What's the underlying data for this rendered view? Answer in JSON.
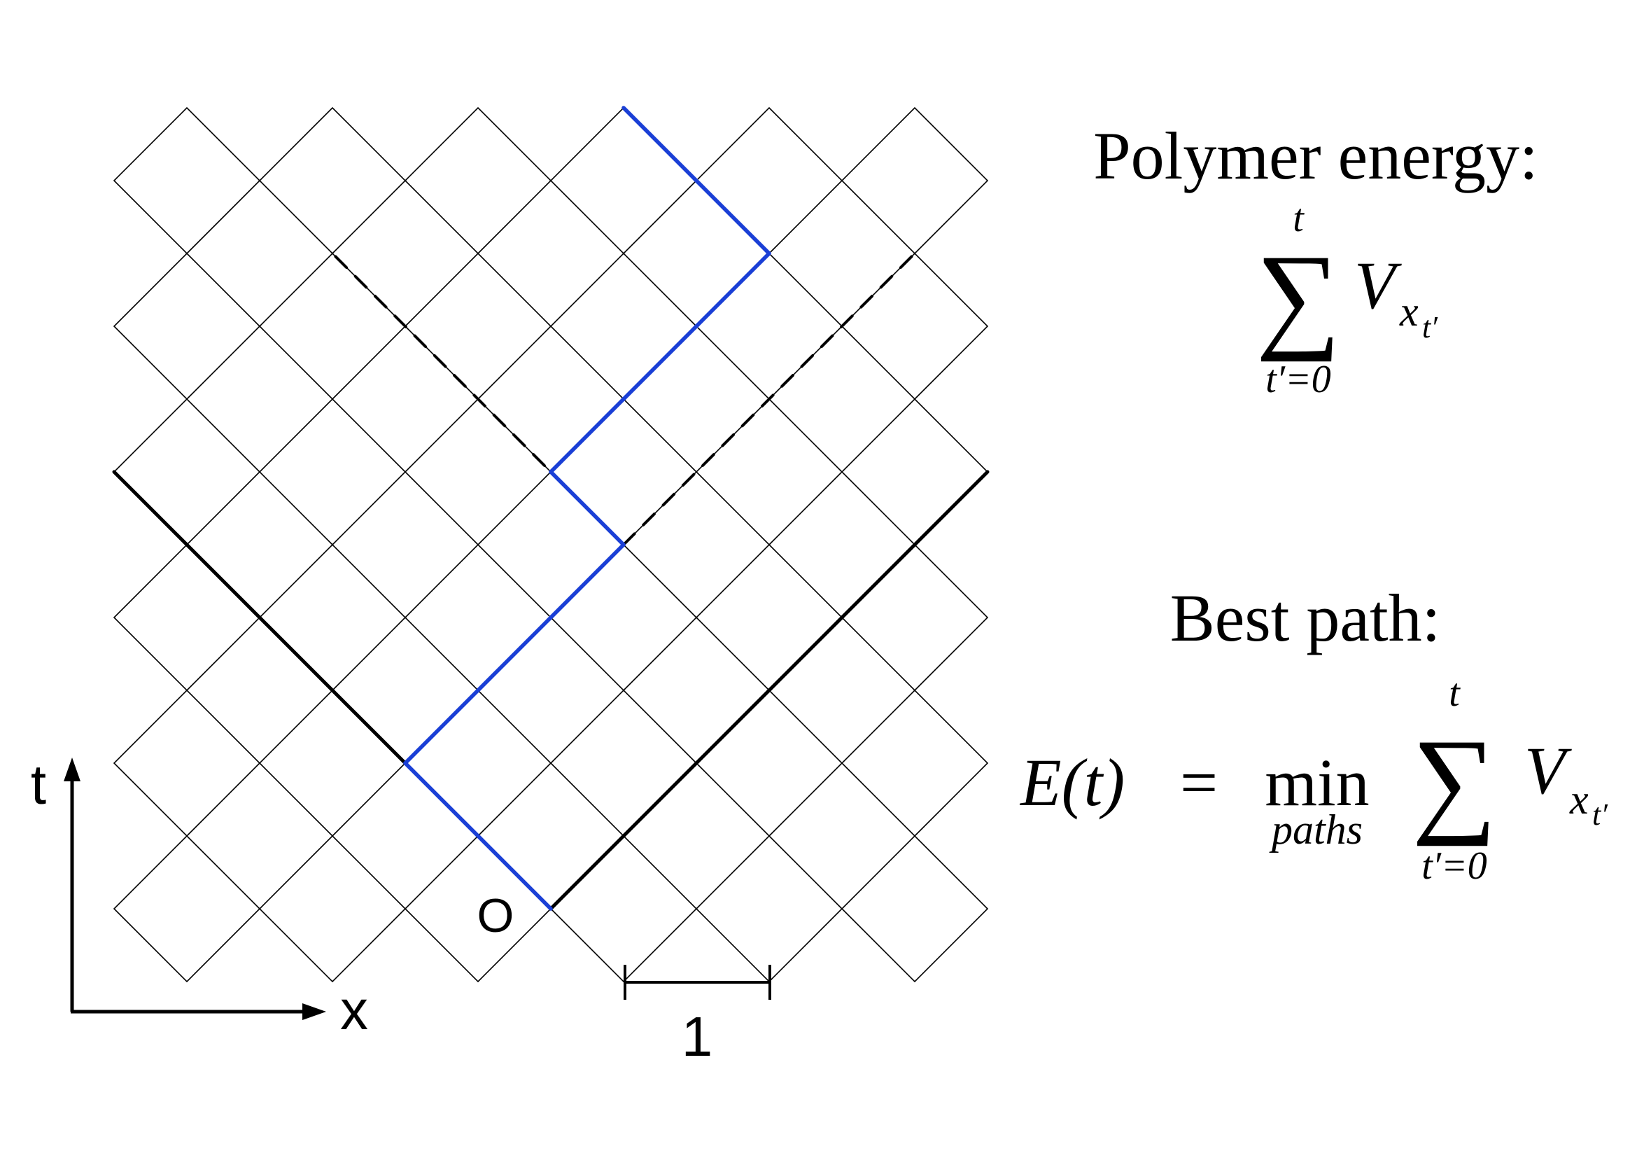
{
  "axes": {
    "time_label": "t",
    "space_label": "x",
    "origin_label": "O",
    "scale_label": "1"
  },
  "formula_energy": {
    "heading": "Polymer energy:",
    "sum_symbol": "∑",
    "sum_upper": "t",
    "sum_lower": "t′=0",
    "term": "V",
    "term_sub": "x",
    "term_subsub": "t′"
  },
  "formula_best": {
    "heading": "Best path:",
    "lhs": "E(t)",
    "equals": "=",
    "min_op": "min",
    "min_sub": "paths",
    "sum_symbol": "∑",
    "sum_upper": "t",
    "sum_lower": "t′=0",
    "term": "V",
    "term_sub": "x",
    "term_subsub": "t′"
  },
  "colors": {
    "grid": "#000000",
    "light_cone": "#000000",
    "best_path": "#1a3fd6",
    "background": "#ffffff"
  }
}
